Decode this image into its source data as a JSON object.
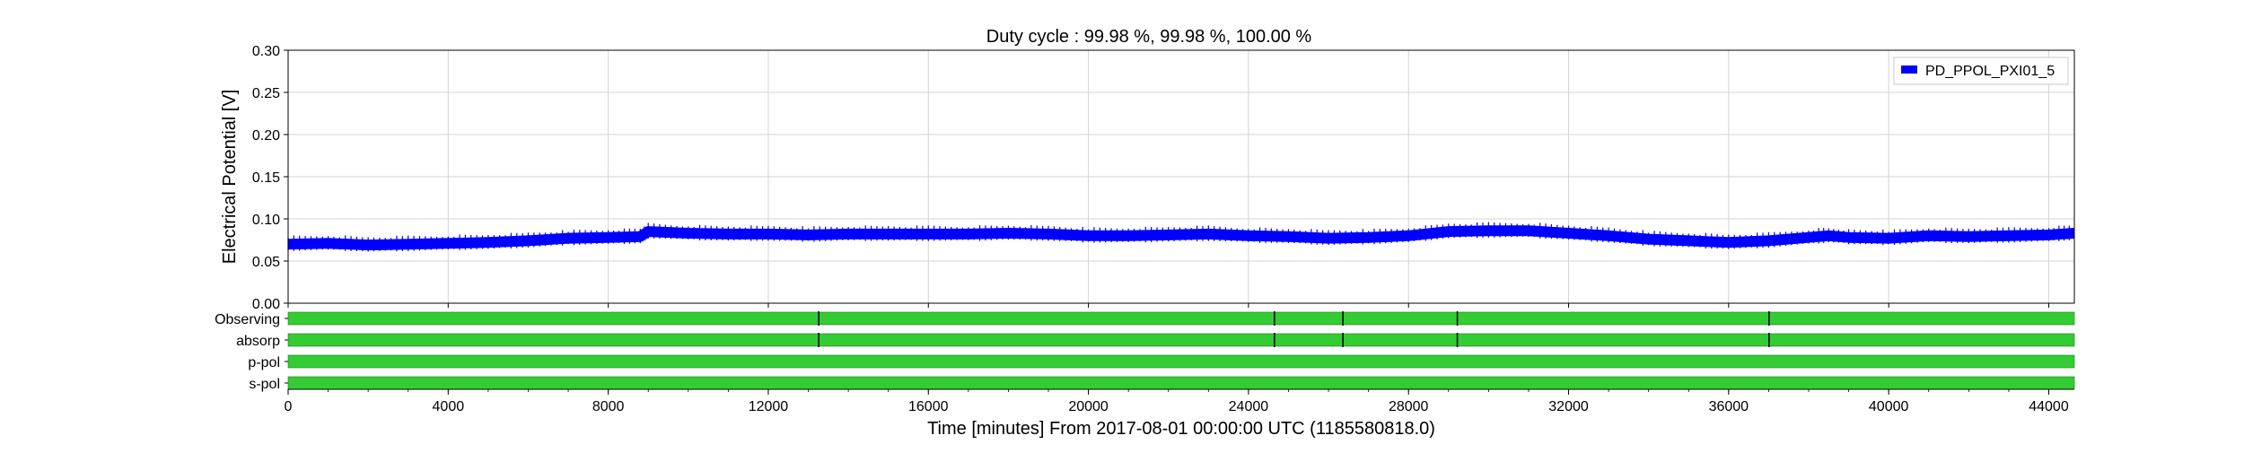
{
  "chart_data": {
    "type": "line",
    "title": "Duty cycle : 99.98 %, 99.98 %, 100.00 %",
    "xlabel": "Time [minutes] From 2017-08-01 00:00:00 UTC (1185580818.0)",
    "ylabel": "Electrical Potential [V]",
    "xlim": [
      0,
      44640
    ],
    "ylim": [
      0,
      0.3
    ],
    "xticks": [
      "0",
      "4000",
      "8000",
      "12000",
      "16000",
      "20000",
      "24000",
      "28000",
      "32000",
      "36000",
      "40000",
      "44000"
    ],
    "xtick_values": [
      0,
      4000,
      8000,
      12000,
      16000,
      20000,
      24000,
      28000,
      32000,
      36000,
      40000,
      44000
    ],
    "yticks": [
      "0.00",
      "0.05",
      "0.10",
      "0.15",
      "0.20",
      "0.25",
      "0.30"
    ],
    "ytick_values": [
      0,
      0.05,
      0.1,
      0.15,
      0.2,
      0.25,
      0.3
    ],
    "grid": true,
    "legend_position": "top-right",
    "series": [
      {
        "name": "PD_PPOL_PXI01_5",
        "color": "#0000ff",
        "x": [
          0,
          1000,
          2000,
          3000,
          4000,
          5000,
          6000,
          7000,
          8000,
          8800,
          9000,
          10000,
          11000,
          12000,
          13000,
          14000,
          15000,
          16000,
          17000,
          18000,
          19000,
          20000,
          21000,
          22000,
          23000,
          24000,
          25000,
          26000,
          27000,
          28000,
          29000,
          30000,
          31000,
          32000,
          33000,
          34000,
          35000,
          36000,
          37000,
          38000,
          38500,
          39000,
          40000,
          41000,
          42000,
          43000,
          44000,
          44640
        ],
        "y": [
          0.07,
          0.071,
          0.069,
          0.07,
          0.071,
          0.072,
          0.074,
          0.077,
          0.078,
          0.079,
          0.085,
          0.083,
          0.082,
          0.082,
          0.081,
          0.082,
          0.082,
          0.082,
          0.082,
          0.083,
          0.082,
          0.08,
          0.08,
          0.081,
          0.082,
          0.08,
          0.079,
          0.077,
          0.078,
          0.08,
          0.085,
          0.086,
          0.086,
          0.083,
          0.08,
          0.076,
          0.074,
          0.072,
          0.074,
          0.078,
          0.08,
          0.078,
          0.077,
          0.08,
          0.079,
          0.08,
          0.081,
          0.083
        ]
      }
    ],
    "segments": [
      {
        "name": "Observing",
        "color": "#33cc33",
        "gaps": [
          13260,
          24650,
          26360,
          29220,
          37010
        ]
      },
      {
        "name": "absorp",
        "color": "#33cc33",
        "gaps": [
          13260,
          24650,
          26360,
          29220,
          37010
        ]
      },
      {
        "name": "p-pol",
        "color": "#33cc33",
        "gaps": []
      },
      {
        "name": "s-pol",
        "color": "#33cc33",
        "gaps": []
      }
    ]
  }
}
